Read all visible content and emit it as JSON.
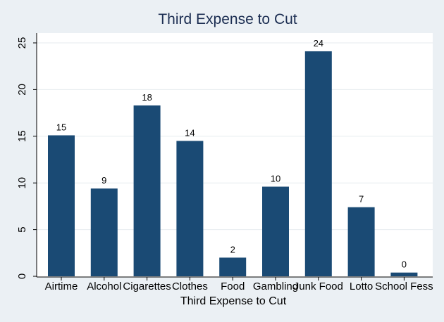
{
  "chart_data": {
    "type": "bar",
    "title": "Third Expense to Cut",
    "xlabel": "Third Expense to Cut",
    "ylabel": "",
    "categories": [
      "Airtime",
      "Alcohol",
      "Cigarettes",
      "Clothes",
      "Food",
      "Gambling",
      "Junk Food",
      "Lotto",
      "School Fess"
    ],
    "values": [
      15.1,
      9.4,
      18.3,
      14.5,
      2.0,
      9.6,
      24.1,
      7.4,
      0.4
    ],
    "data_labels": [
      "15",
      "9",
      "18",
      "14",
      "2",
      "10",
      "24",
      "7",
      "0"
    ],
    "yticks": [
      0,
      5,
      10,
      15,
      20,
      25
    ],
    "ylim": [
      0,
      26
    ],
    "grid": true,
    "bar_color": "#1a4a74"
  }
}
